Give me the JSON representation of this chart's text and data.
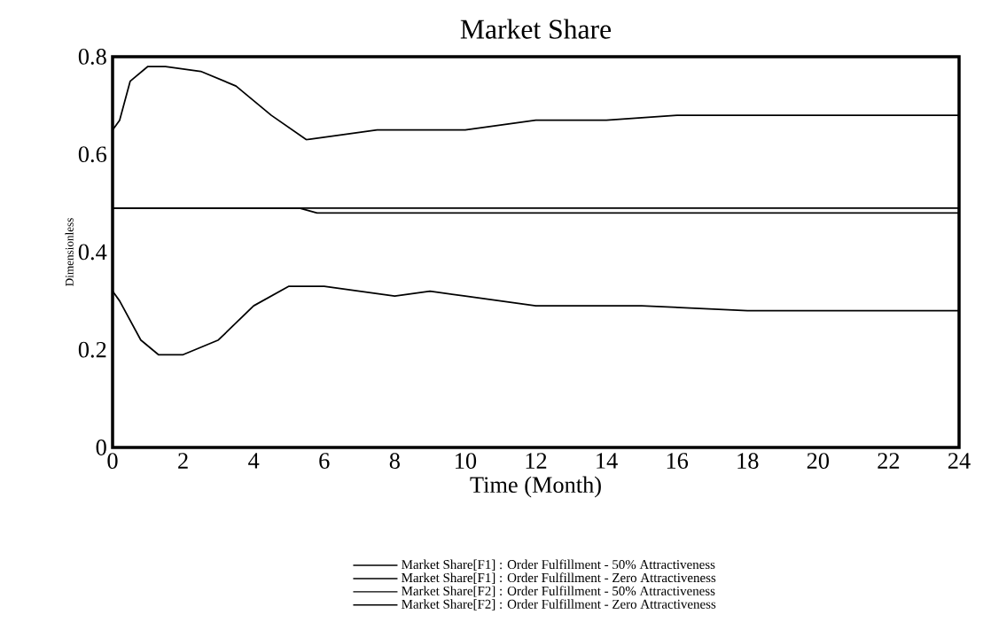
{
  "chart_data": {
    "type": "line",
    "title": "Market Share",
    "xlabel": "Time (Month)",
    "ylabel": "Dimensionless",
    "xlim": [
      0,
      24
    ],
    "ylim": [
      0,
      0.8
    ],
    "xticks": [
      0,
      2,
      4,
      6,
      8,
      10,
      12,
      14,
      16,
      18,
      20,
      22,
      24
    ],
    "yticks": [
      0,
      0.2,
      0.4,
      0.6,
      0.8
    ],
    "grid": false,
    "legend": "bottom",
    "line_style": "solid",
    "series": [
      {
        "name": "Market Share[F1] : Order Fulfillment - 50% Attractiveness",
        "color": "#000000",
        "x": [
          0,
          0.2,
          0.8,
          1.3,
          2,
          3,
          4,
          5,
          6,
          7,
          8,
          9,
          10,
          11,
          12,
          15,
          18,
          20,
          22,
          24
        ],
        "values": [
          0.32,
          0.3,
          0.22,
          0.19,
          0.19,
          0.22,
          0.29,
          0.33,
          0.33,
          0.32,
          0.31,
          0.32,
          0.31,
          0.3,
          0.29,
          0.29,
          0.28,
          0.28,
          0.28,
          0.28
        ]
      },
      {
        "name": "Market Share[F1] : Order Fulfillment - Zero Attractiveness",
        "color": "#000000",
        "x": [
          0,
          24
        ],
        "values": [
          0.49,
          0.49
        ]
      },
      {
        "name": "Market Share[F2] : Order Fulfillment - 50% Attractiveness",
        "color": "#000000",
        "x": [
          0,
          0.2,
          0.5,
          1,
          1.5,
          2.5,
          3.5,
          4.5,
          5.5,
          6.5,
          7.5,
          8.5,
          10,
          12,
          14,
          16,
          18,
          20,
          22,
          24
        ],
        "values": [
          0.65,
          0.67,
          0.75,
          0.78,
          0.78,
          0.77,
          0.74,
          0.68,
          0.63,
          0.64,
          0.65,
          0.65,
          0.65,
          0.67,
          0.67,
          0.68,
          0.68,
          0.68,
          0.68,
          0.68
        ]
      },
      {
        "name": "Market Share[F2] : Order Fulfillment - Zero Attractiveness",
        "color": "#000000",
        "x": [
          0,
          5.3,
          5.8,
          24
        ],
        "values": [
          0.49,
          0.49,
          0.48,
          0.48
        ]
      }
    ]
  }
}
